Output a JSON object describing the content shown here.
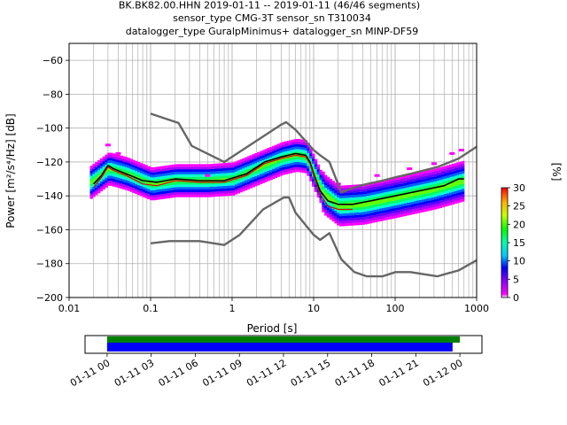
{
  "title": {
    "line1": "BK.BK82.00.HHN   2019-01-11 -- 2019-01-11  (46/46 segments)",
    "line2": "sensor_type CMG-3T sensor_sn T310034",
    "line3": "datalogger_type GuralpMinimus+ datalogger_sn MINP-DF59"
  },
  "chart_data": [
    {
      "type": "heatmap",
      "xlabel": "Period [s]",
      "ylabel": "Power [m²/s⁴/Hz] [dB]",
      "x_scale": "log",
      "xlim": [
        0.01,
        1000
      ],
      "ylim": [
        -200,
        -50
      ],
      "x_ticks": [
        {
          "v": 0.01,
          "label": "0.01"
        },
        {
          "v": 0.1,
          "label": "0.1"
        },
        {
          "v": 1,
          "label": "1"
        },
        {
          "v": 10,
          "label": "10"
        },
        {
          "v": 100,
          "label": "100"
        },
        {
          "v": 1000,
          "label": "1000"
        }
      ],
      "y_ticks": [
        {
          "v": -60,
          "label": "−60"
        },
        {
          "v": -80,
          "label": "−80"
        },
        {
          "v": -100,
          "label": "−100"
        },
        {
          "v": -120,
          "label": "−120"
        },
        {
          "v": -140,
          "label": "−140"
        },
        {
          "v": -160,
          "label": "−160"
        },
        {
          "v": -180,
          "label": "−180"
        },
        {
          "v": -200,
          "label": "−200"
        }
      ],
      "grid": true,
      "colorbar": {
        "label": "[%]",
        "range": [
          0,
          30
        ],
        "ticks": [
          {
            "v": 0,
            "label": "0"
          },
          {
            "v": 5,
            "label": "5"
          },
          {
            "v": 10,
            "label": "10"
          },
          {
            "v": 15,
            "label": "15"
          },
          {
            "v": 20,
            "label": "20"
          },
          {
            "v": 25,
            "label": "25"
          },
          {
            "v": 30,
            "label": "30"
          }
        ]
      },
      "series": [
        {
          "style": "noise-model",
          "color": "#666666",
          "points": [
            [
              0.1,
              -91.5
            ],
            [
              0.22,
              -97
            ],
            [
              0.32,
              -110.5
            ],
            [
              0.8,
              -120
            ],
            [
              4,
              -98
            ],
            [
              4.6,
              -96.5
            ],
            [
              6,
              -101
            ],
            [
              10,
              -113
            ],
            [
              12,
              -116
            ],
            [
              15.6,
              -120
            ],
            [
              21.9,
              -138
            ],
            [
              31.6,
              -135
            ],
            [
              45,
              -133
            ],
            [
              70,
              -131
            ],
            [
              101,
              -129
            ],
            [
              154,
              -127
            ],
            [
              328,
              -123
            ],
            [
              600,
              -118
            ],
            [
              1000,
              -111
            ]
          ]
        },
        {
          "style": "noise-model",
          "color": "#666666",
          "points": [
            [
              0.1,
              -168
            ],
            [
              0.17,
              -166.7
            ],
            [
              0.4,
              -166.7
            ],
            [
              0.8,
              -169
            ],
            [
              1.24,
              -163
            ],
            [
              2.4,
              -148
            ],
            [
              4.3,
              -141
            ],
            [
              5,
              -141
            ],
            [
              6,
              -150
            ],
            [
              10,
              -163
            ],
            [
              12,
              -166
            ],
            [
              15.6,
              -162
            ],
            [
              21.9,
              -177.5
            ],
            [
              31.6,
              -185
            ],
            [
              45,
              -187.5
            ],
            [
              70,
              -187.5
            ],
            [
              101,
              -185
            ],
            [
              154,
              -185
            ],
            [
              328,
              -187.5
            ],
            [
              600,
              -184
            ],
            [
              1000,
              -178
            ]
          ]
        },
        {
          "style": "median",
          "color": "#000000",
          "points": [
            [
              0.02,
              -133
            ],
            [
              0.025,
              -128
            ],
            [
              0.03,
              -122
            ],
            [
              0.035,
              -124
            ],
            [
              0.05,
              -127
            ],
            [
              0.08,
              -131
            ],
            [
              0.12,
              -132
            ],
            [
              0.2,
              -130
            ],
            [
              0.4,
              -131
            ],
            [
              0.8,
              -131
            ],
            [
              1.5,
              -127
            ],
            [
              2.5,
              -120
            ],
            [
              4,
              -117
            ],
            [
              6,
              -115
            ],
            [
              8,
              -116
            ],
            [
              9,
              -120
            ],
            [
              10,
              -127
            ],
            [
              12,
              -137
            ],
            [
              15,
              -143
            ],
            [
              20,
              -145
            ],
            [
              30,
              -145
            ],
            [
              50,
              -143
            ],
            [
              100,
              -140
            ],
            [
              200,
              -137
            ],
            [
              400,
              -134
            ],
            [
              600,
              -130
            ],
            [
              700,
              -130
            ]
          ]
        },
        {
          "style": "mode",
          "color": "#dd0000",
          "points": [
            [
              0.02,
              -135
            ],
            [
              0.025,
              -129
            ],
            [
              0.03,
              -123
            ],
            [
              0.035,
              -125
            ],
            [
              0.05,
              -128
            ],
            [
              0.08,
              -133
            ],
            [
              0.12,
              -134
            ],
            [
              0.2,
              -131
            ],
            [
              0.4,
              -132
            ],
            [
              0.8,
              -132
            ],
            [
              1.5,
              -128
            ],
            [
              2.5,
              -121
            ],
            [
              4,
              -118
            ],
            [
              6,
              -116
            ],
            [
              8,
              -117
            ],
            [
              9,
              -121
            ],
            [
              10,
              -128
            ],
            [
              12,
              -139
            ],
            [
              15,
              -146
            ],
            [
              20,
              -148
            ],
            [
              30,
              -148
            ]
          ]
        }
      ],
      "density_band": {
        "period_range": [
          0.018,
          700
        ],
        "center": [
          [
            0.018,
            -132
          ],
          [
            0.03,
            -124
          ],
          [
            0.05,
            -127
          ],
          [
            0.1,
            -133
          ],
          [
            0.2,
            -131
          ],
          [
            0.5,
            -131
          ],
          [
            1,
            -130
          ],
          [
            2,
            -124
          ],
          [
            4,
            -118
          ],
          [
            6,
            -116
          ],
          [
            8,
            -117
          ],
          [
            10,
            -127
          ],
          [
            13,
            -139
          ],
          [
            20,
            -146
          ],
          [
            40,
            -145
          ],
          [
            100,
            -141
          ],
          [
            300,
            -136
          ],
          [
            700,
            -131
          ]
        ],
        "spread_db": 9,
        "outliers_top": [
          [
            0.03,
            -110
          ],
          [
            0.04,
            -115
          ],
          [
            0.5,
            -128
          ],
          [
            20,
            -133
          ],
          [
            60,
            -128
          ],
          [
            150,
            -124
          ],
          [
            300,
            -121
          ],
          [
            500,
            -115
          ],
          [
            650,
            -113
          ]
        ]
      }
    },
    {
      "type": "timeline",
      "x_ticks": [
        {
          "label": "01-11 00"
        },
        {
          "label": "01-11 03"
        },
        {
          "label": "01-11 06"
        },
        {
          "label": "01-11 09"
        },
        {
          "label": "01-11 12"
        },
        {
          "label": "01-11 15"
        },
        {
          "label": "01-11 18"
        },
        {
          "label": "01-11 21"
        },
        {
          "label": "01-12 00"
        }
      ],
      "xlim_hours": [
        -1.5,
        25.5
      ],
      "bars": [
        {
          "color": "#008000",
          "start_hour": 0,
          "end_hour": 24.0
        },
        {
          "color": "#0000ff",
          "start_hour": 0,
          "end_hour": 23.5
        }
      ]
    }
  ]
}
